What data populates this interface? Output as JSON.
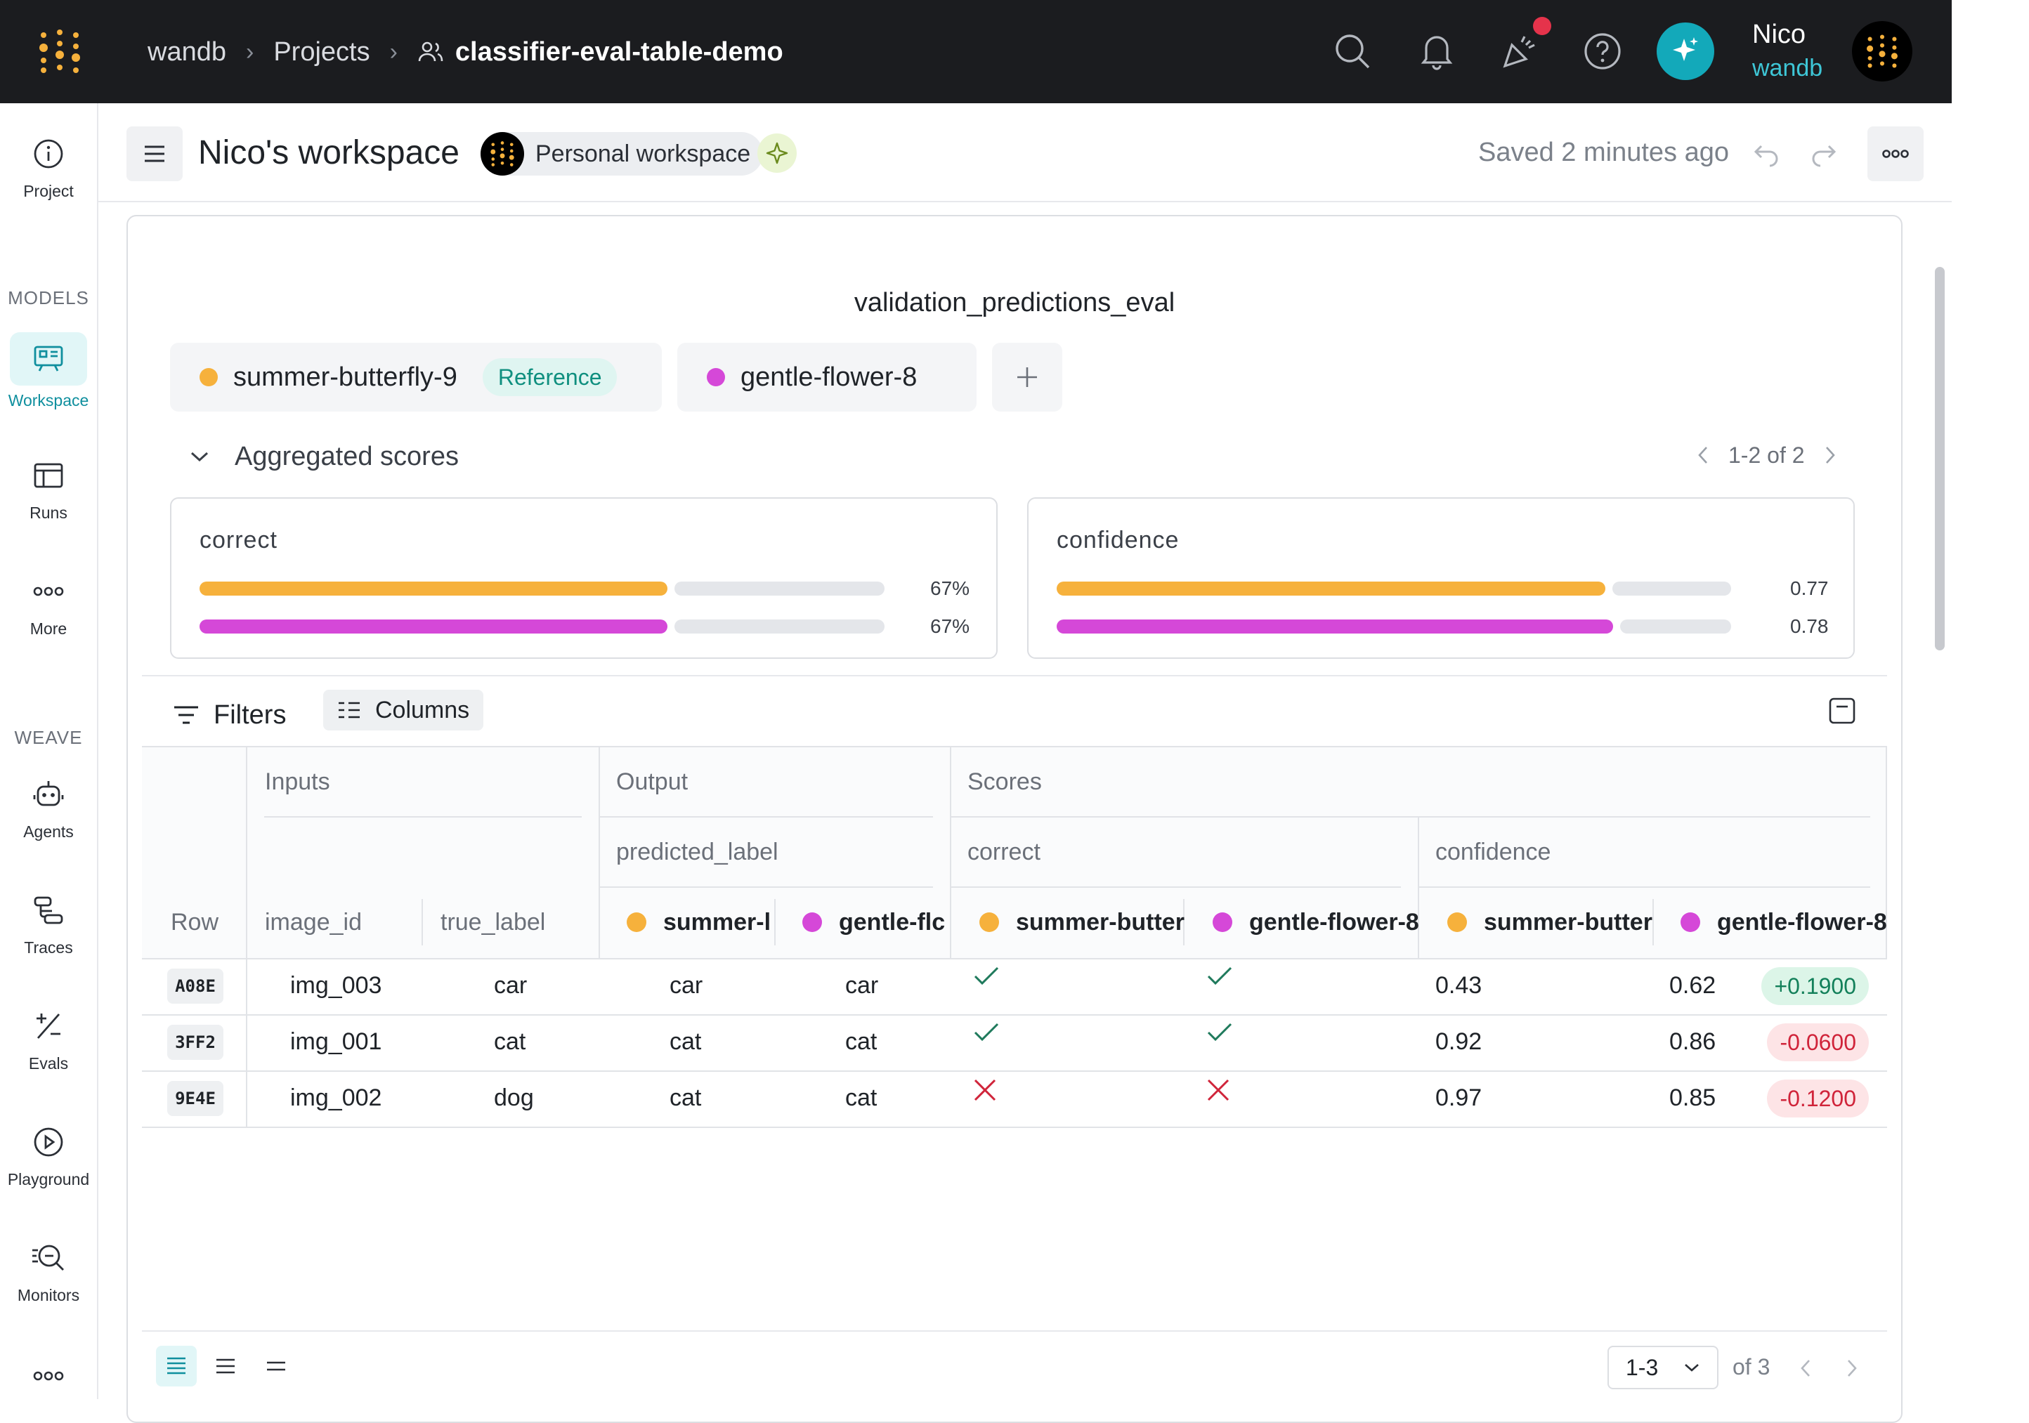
{
  "topbar": {
    "breadcrumbs": [
      "wandb",
      "Projects",
      "classifier-eval-table-demo"
    ],
    "user_name": "Nico",
    "user_org": "wandb",
    "icons": [
      "search-icon",
      "bell-icon",
      "party-popper-icon",
      "help-icon",
      "ai-assistant-icon"
    ]
  },
  "sidebar": {
    "items": [
      {
        "label": "Project",
        "icon": "info-icon"
      },
      {
        "label": "Workspace",
        "icon": "workspace-icon",
        "active": true
      },
      {
        "label": "Runs",
        "icon": "table-icon"
      },
      {
        "label": "More",
        "icon": "more-icon"
      },
      {
        "label": "Agents",
        "icon": "robot-icon"
      },
      {
        "label": "Traces",
        "icon": "traces-icon"
      },
      {
        "label": "Evals",
        "icon": "plus-minus-icon"
      },
      {
        "label": "Playground",
        "icon": "play-icon"
      },
      {
        "label": "Monitors",
        "icon": "monitor-icon"
      }
    ],
    "sections": {
      "models": "MODELS",
      "weave": "WEAVE"
    }
  },
  "header": {
    "title": "Nico's workspace",
    "badge": "Personal workspace",
    "saved": "Saved 2 minutes ago"
  },
  "eval": {
    "title": "validation_predictions_eval",
    "models": [
      {
        "name": "summer-butterfly-9",
        "color": "#f6b13c",
        "badge": "Reference"
      },
      {
        "name": "gentle-flower-8",
        "color": "#d548d8"
      }
    ],
    "aggregated": {
      "label": "Aggregated scores",
      "pager": "1-2 of 2",
      "cards": [
        {
          "title": "correct",
          "values": [
            "67%",
            "67%"
          ],
          "fractions": [
            0.67,
            0.67
          ]
        },
        {
          "title": "confidence",
          "values": [
            "0.77",
            "0.78"
          ],
          "fractions": [
            0.77,
            0.78
          ]
        }
      ]
    }
  },
  "toolbar": {
    "filters": "Filters",
    "columns": "Columns"
  },
  "table": {
    "groups": {
      "inputs": "Inputs",
      "output": "Output",
      "scores": "Scores"
    },
    "subgroups": {
      "predicted_label": "predicted_label",
      "correct": "correct",
      "confidence": "confidence"
    },
    "columns": {
      "row": "Row",
      "image_id": "image_id",
      "true_label": "true_label",
      "pred_a": "summer-l",
      "pred_b": "gentle-flc",
      "correct_a": "summer-butter",
      "correct_b": "gentle-flower-8",
      "conf_a": "summer-butter",
      "conf_b": "gentle-flower-8"
    },
    "rows": [
      {
        "id": "A08E",
        "image_id": "img_003",
        "true_label": "car",
        "pred_a": "car",
        "pred_b": "car",
        "correct_a": true,
        "correct_b": true,
        "conf_a": "0.43",
        "conf_b": "0.62",
        "delta": "+0.1900",
        "delta_sign": "pos"
      },
      {
        "id": "3FF2",
        "image_id": "img_001",
        "true_label": "cat",
        "pred_a": "cat",
        "pred_b": "cat",
        "correct_a": true,
        "correct_b": true,
        "conf_a": "0.92",
        "conf_b": "0.86",
        "delta": "-0.0600",
        "delta_sign": "neg"
      },
      {
        "id": "9E4E",
        "image_id": "img_002",
        "true_label": "dog",
        "pred_a": "cat",
        "pred_b": "cat",
        "correct_a": false,
        "correct_b": false,
        "conf_a": "0.97",
        "conf_b": "0.85",
        "delta": "-0.1200",
        "delta_sign": "neg"
      }
    ]
  },
  "footer": {
    "page_range": "1-3",
    "page_of": "of 3"
  }
}
